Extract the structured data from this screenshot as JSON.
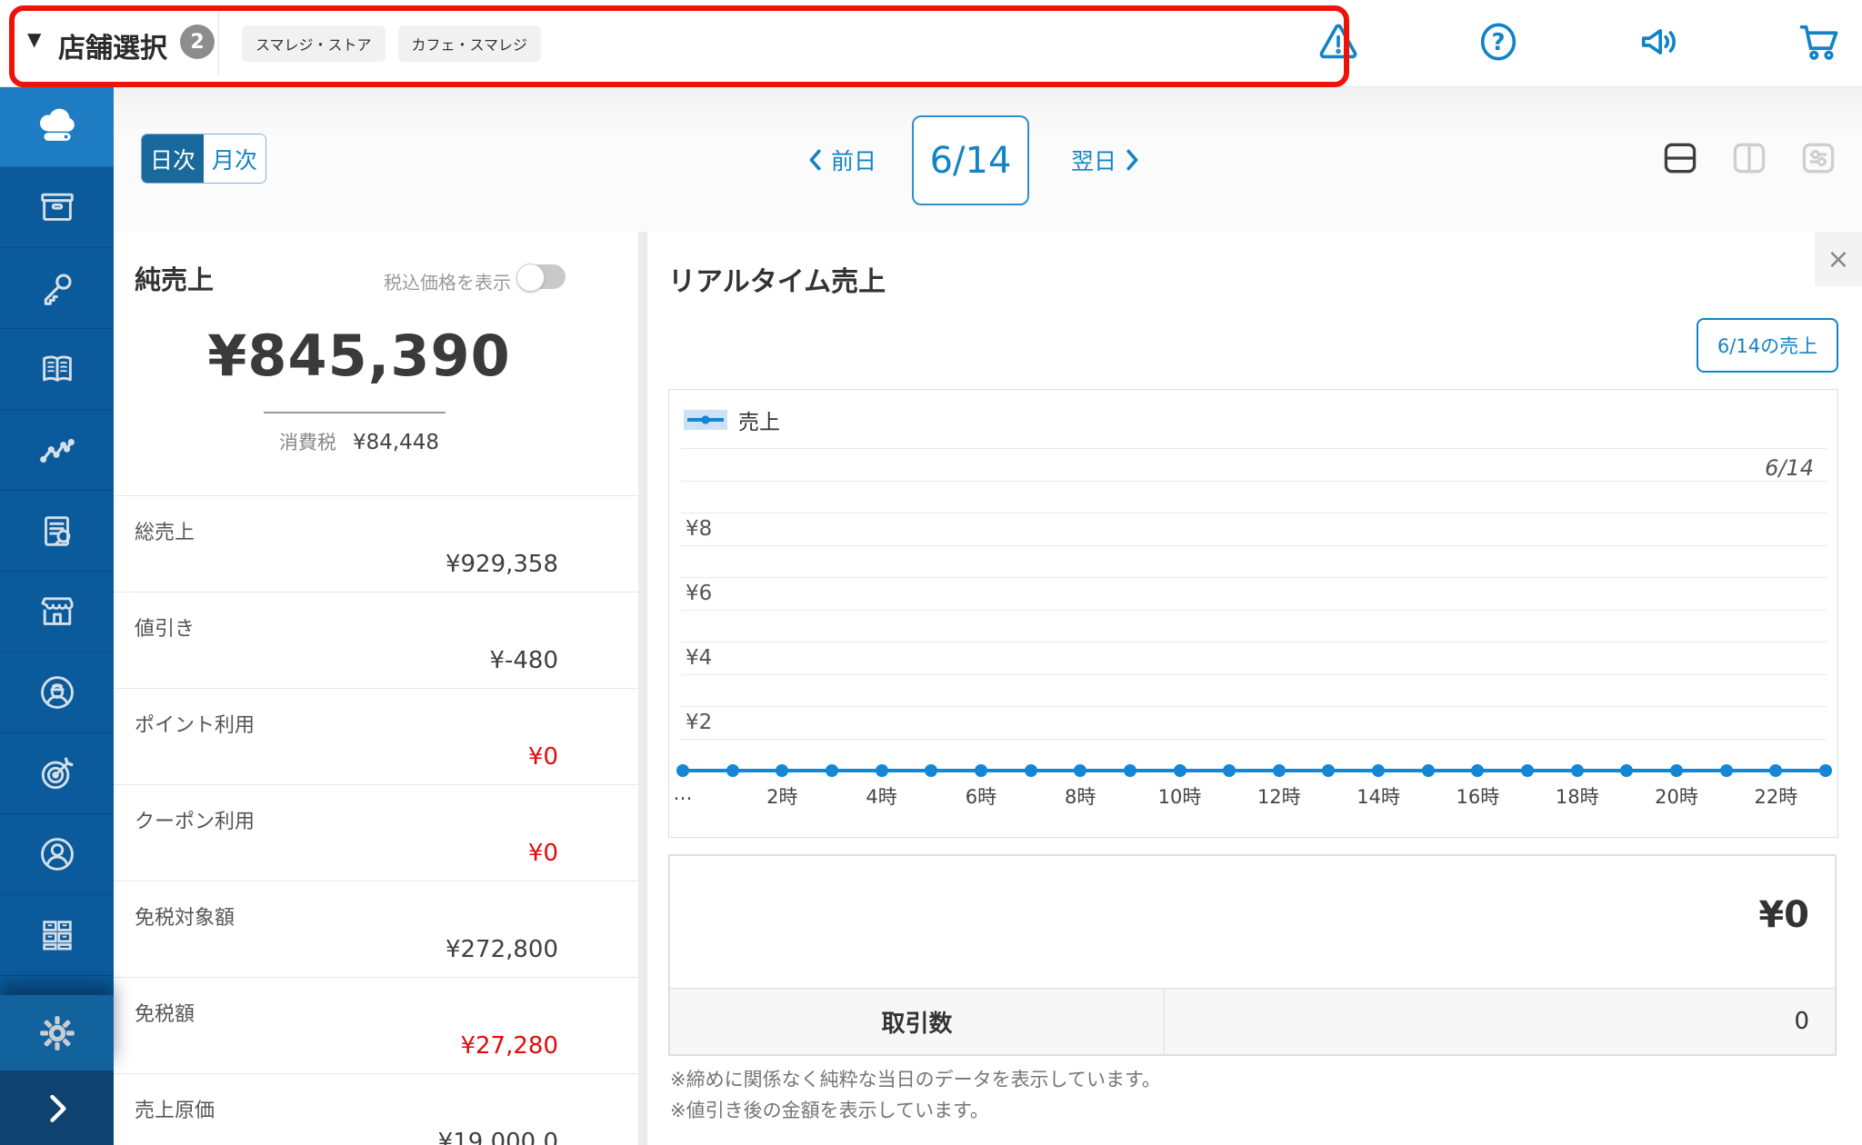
{
  "colors": {
    "accent_blue": "#1283c5",
    "sidebar_blue": "#0b5b9c",
    "sidebar_active_blue": "#1e7cc2",
    "toggle_active_bg": "#19699d",
    "chart_line_blue": "#1486d6",
    "legend_highlight": "#cde1f4",
    "negative_red": "#e00b0b",
    "annotation_red": "#ee1208",
    "badge_gray": "#8d8d8d"
  },
  "topbar": {
    "store_selector": {
      "label": "店舗選択",
      "count": "2"
    },
    "store_chips": [
      "スマレジ・ストア",
      "カフェ・スマレジ"
    ],
    "icons": [
      "alert-icon",
      "help-icon",
      "announcement-icon",
      "cart-icon"
    ]
  },
  "sidebar": {
    "items": [
      {
        "name": "cloud",
        "active": true
      },
      {
        "name": "archive-box",
        "active": false
      },
      {
        "name": "key",
        "active": false
      },
      {
        "name": "book",
        "active": false
      },
      {
        "name": "trend-chart",
        "active": false
      },
      {
        "name": "report-search",
        "active": false
      },
      {
        "name": "storefront",
        "active": false
      },
      {
        "name": "staff",
        "active": false
      },
      {
        "name": "target",
        "active": false
      },
      {
        "name": "customer",
        "active": false
      },
      {
        "name": "drawers",
        "active": false
      },
      {
        "name": "clipboard",
        "active": false
      }
    ]
  },
  "toolbar": {
    "period_tabs": [
      {
        "label": "日次",
        "active": true
      },
      {
        "label": "月次",
        "active": false
      }
    ],
    "prev_label": "前日",
    "current_date": "6/14",
    "next_label": "翌日",
    "layout_icons": [
      "split-horizontal-icon",
      "split-vertical-icon",
      "tune-icon"
    ]
  },
  "left_panel": {
    "title": "純売上",
    "tax_toggle_label": "税込価格を表示",
    "net_sales": "¥845,390",
    "tax_label": "消費税",
    "tax_value": "¥84,448",
    "rows": [
      {
        "label": "総売上",
        "value": "¥929,358",
        "color": "dark"
      },
      {
        "label": "値引き",
        "value": "¥-480",
        "color": "dark"
      },
      {
        "label": "ポイント利用",
        "value": "¥0",
        "color": "red"
      },
      {
        "label": "クーポン利用",
        "value": "¥0",
        "color": "red"
      },
      {
        "label": "免税対象額",
        "value": "¥272,800",
        "color": "dark"
      },
      {
        "label": "免税額",
        "value": "¥27,280",
        "color": "red"
      },
      {
        "label": "売上原価",
        "value": "¥19,000.0",
        "color": "dark"
      }
    ]
  },
  "realtime_panel": {
    "title": "リアルタイム売上",
    "close_label": "×",
    "date_button_label": "6/14の売上",
    "chart_data": {
      "type": "line",
      "legend": "売上",
      "period_label": "6/14",
      "values": [
        0,
        0,
        0,
        0,
        0,
        0,
        0,
        0,
        0,
        0,
        0,
        0,
        0,
        0,
        0,
        0,
        0,
        0,
        0,
        0,
        0,
        0,
        0,
        0
      ],
      "ylim": [
        0,
        10
      ],
      "y_gridline_values": [
        0,
        1,
        2,
        3,
        4,
        5,
        6,
        7,
        8,
        9,
        10
      ],
      "y_ticks": [
        {
          "v": 8,
          "label": "¥8"
        },
        {
          "v": 6,
          "label": "¥6"
        },
        {
          "v": 4,
          "label": "¥4"
        },
        {
          "v": 2,
          "label": "¥2"
        }
      ],
      "x_ticks": [
        {
          "h": 0,
          "label": "…"
        },
        {
          "h": 2,
          "label": "2時"
        },
        {
          "h": 4,
          "label": "4時"
        },
        {
          "h": 6,
          "label": "6時"
        },
        {
          "h": 8,
          "label": "8時"
        },
        {
          "h": 10,
          "label": "10時"
        },
        {
          "h": 12,
          "label": "12時"
        },
        {
          "h": 14,
          "label": "14時"
        },
        {
          "h": 16,
          "label": "16時"
        },
        {
          "h": 18,
          "label": "18時"
        },
        {
          "h": 20,
          "label": "20時"
        },
        {
          "h": 22,
          "label": "22時"
        }
      ]
    },
    "summary": {
      "total": "¥0",
      "transactions_label": "取引数",
      "transactions_value": "0"
    },
    "notes": [
      "※締めに関係なく純粋な当日のデータを表示しています。",
      "※値引き後の金額を表示しています。"
    ]
  }
}
